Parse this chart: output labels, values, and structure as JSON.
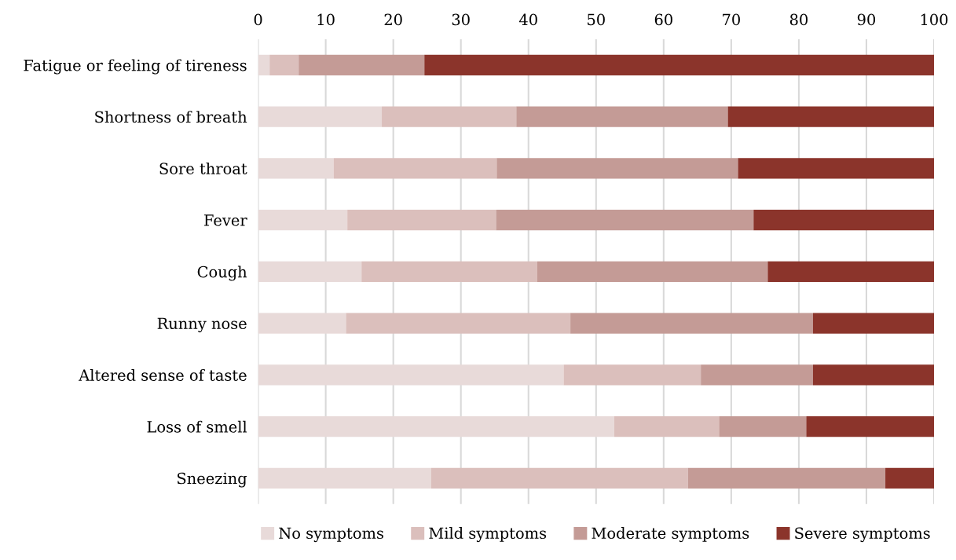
{
  "chart_data": {
    "type": "bar",
    "orientation": "horizontal",
    "stacked": true,
    "categories": [
      "Fatigue or feeling of tireness",
      "Shortness of breath",
      "Sore throat",
      "Fever",
      "Cough",
      "Runny nose",
      "Altered sense of taste",
      "Loss of smell",
      "Sneezing"
    ],
    "series": [
      {
        "name": "No symptoms",
        "color": "#e8dad9",
        "values": [
          1.7,
          18.3,
          11.2,
          13.2,
          15.3,
          13.0,
          45.2,
          52.7,
          25.6
        ]
      },
      {
        "name": "Mild symptoms",
        "color": "#dbbfbc",
        "values": [
          4.3,
          19.9,
          24.1,
          22.0,
          26.0,
          33.2,
          20.3,
          15.5,
          38.0
        ]
      },
      {
        "name": "Moderate symptoms",
        "color": "#c49b96",
        "values": [
          18.6,
          31.3,
          35.7,
          38.1,
          34.1,
          35.9,
          16.6,
          12.9,
          29.2
        ]
      },
      {
        "name": "Severe symptoms",
        "color": "#8b342b",
        "values": [
          75.4,
          30.5,
          29.0,
          26.7,
          24.6,
          17.9,
          17.9,
          18.9,
          7.2
        ]
      }
    ],
    "xlim": [
      0,
      100
    ],
    "xticks": [
      0,
      10,
      20,
      30,
      40,
      50,
      60,
      70,
      80,
      90,
      100
    ],
    "grid": "x",
    "legend": "bottom"
  }
}
